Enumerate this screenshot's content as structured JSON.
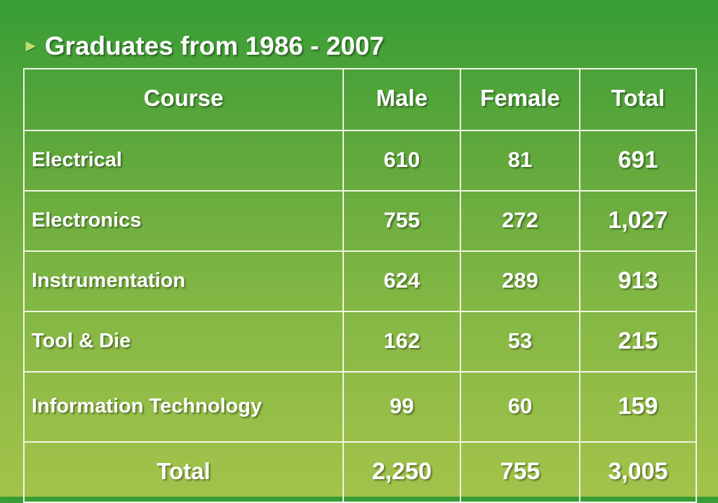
{
  "slide": {
    "bullet": "►",
    "title": "Graduates from 1986 - 2007"
  },
  "table": {
    "headers": [
      "Course",
      "Male",
      "Female",
      "Total"
    ],
    "rows": [
      {
        "course": "Electrical",
        "male": "610",
        "female": "81",
        "total": "691"
      },
      {
        "course": "Electronics",
        "male": "755",
        "female": "272",
        "total": "1,027"
      },
      {
        "course": "Instrumentation",
        "male": "624",
        "female": "289",
        "total": "913"
      },
      {
        "course": "Tool & Die",
        "male": "162",
        "female": "53",
        "total": "215"
      },
      {
        "course": "Information Technology",
        "male": "99",
        "female": "60",
        "total": "159"
      }
    ],
    "total_row": {
      "label": "Total",
      "male": "2,250",
      "female": "755",
      "total": "3,005"
    }
  },
  "colors": {
    "background_top": "#379d35",
    "background_bottom": "#a3c34a",
    "text": "#ffffff",
    "border": "#f2f6e8",
    "bullet": "#b9e06a"
  }
}
